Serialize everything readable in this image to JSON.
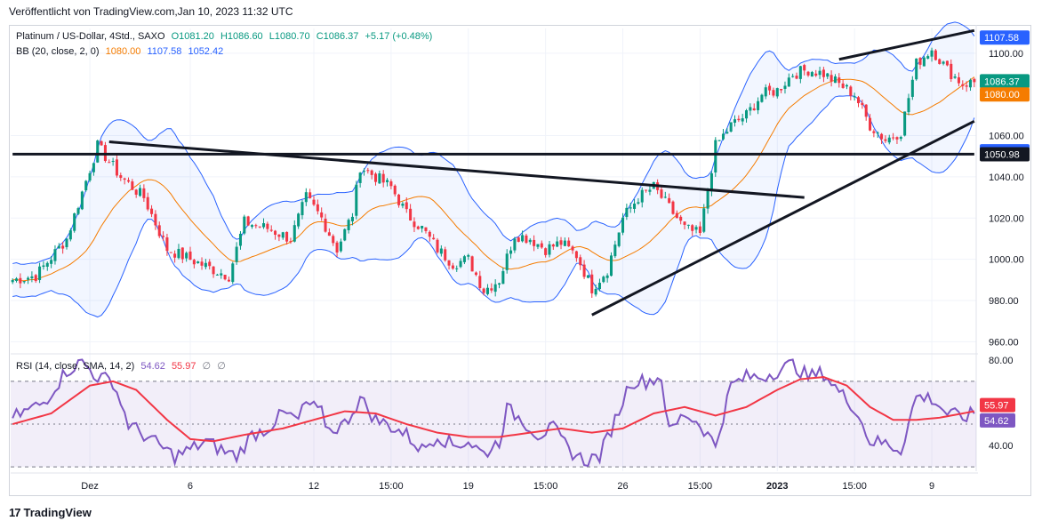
{
  "published": "Veröffentlicht von TradingView.com,Jan 10, 2023 11:32 UTC",
  "brand": "TradingView",
  "brand_icon": "tradingview-logo-icon",
  "legend": {
    "symbol": "Platinum / US-Dollar, 4Std., SAXO",
    "open": "O1081.20",
    "high": "H1086.60",
    "low": "L1080.70",
    "close": "C1086.37",
    "change": "+5.17 (+0.48%)",
    "bb_label": "BB (20, close, 2, 0)",
    "bb_basis": "1080.00",
    "bb_upper": "1107.58",
    "bb_lower": "1052.42",
    "rsi_label": "RSI (14, close, SMA, 14, 2)",
    "rsi_value": "54.62",
    "rsi_ma": "55.97",
    "rsi_extra1": "∅",
    "rsi_extra2": "∅"
  },
  "colors": {
    "up": "#089981",
    "down": "#f23645",
    "bb_band": "#2962ff",
    "bb_basis": "#f57c00",
    "rsi": "#7e57c2",
    "rsi_ma": "#f23645",
    "trendline": "#131722"
  },
  "chart_data": [
    {
      "type": "candlestick",
      "title": "Platinum / US-Dollar, 4Std., SAXO",
      "currency": "USD",
      "ylim": [
        955,
        1112
      ],
      "y_ticks": [
        960,
        980,
        1000,
        1020,
        1040,
        1060,
        1100
      ],
      "y_tick_labels": [
        "960.00",
        "980.00",
        "1000.00",
        "1020.00",
        "1040.00",
        "1060.00",
        "1100.00"
      ],
      "x_tick_labels": [
        "Dez",
        "6",
        "12",
        "15:00",
        "19",
        "15:00",
        "26",
        "15:00",
        "2023",
        "15:00",
        "9"
      ],
      "x_tick_index": [
        20,
        46,
        78,
        98,
        118,
        138,
        158,
        178,
        198,
        218,
        238
      ],
      "n_bars": 250,
      "price_labels": [
        {
          "value": 1107.58,
          "text": "1107.58",
          "color": "#2962ff"
        },
        {
          "value": 1086.37,
          "text": "1086.37",
          "color": "#089981"
        },
        {
          "value": 1080.0,
          "text": "1080.00",
          "color": "#f57c00"
        },
        {
          "value": 1052.42,
          "text": "1052.42",
          "color": "#2962ff"
        },
        {
          "value": 1050.98,
          "text": "1050.98",
          "color": "#131722"
        }
      ],
      "price_path_keypoints": [
        [
          0,
          990
        ],
        [
          6,
          992
        ],
        [
          14,
          1010
        ],
        [
          22,
          1055
        ],
        [
          28,
          1040
        ],
        [
          34,
          1030
        ],
        [
          40,
          1005
        ],
        [
          46,
          1000
        ],
        [
          52,
          995
        ],
        [
          56,
          992
        ],
        [
          60,
          1018
        ],
        [
          66,
          1015
        ],
        [
          72,
          1010
        ],
        [
          76,
          1030
        ],
        [
          80,
          1020
        ],
        [
          84,
          1005
        ],
        [
          88,
          1022
        ],
        [
          90,
          1045
        ],
        [
          94,
          1040
        ],
        [
          98,
          1035
        ],
        [
          102,
          1022
        ],
        [
          106,
          1015
        ],
        [
          110,
          1005
        ],
        [
          114,
          998
        ],
        [
          118,
          1000
        ],
        [
          122,
          985
        ],
        [
          126,
          990
        ],
        [
          130,
          1012
        ],
        [
          134,
          1010
        ],
        [
          138,
          1005
        ],
        [
          142,
          1008
        ],
        [
          146,
          1002
        ],
        [
          150,
          986
        ],
        [
          154,
          995
        ],
        [
          158,
          1020
        ],
        [
          162,
          1030
        ],
        [
          166,
          1035
        ],
        [
          170,
          1025
        ],
        [
          174,
          1015
        ],
        [
          178,
          1012
        ],
        [
          182,
          1055
        ],
        [
          186,
          1065
        ],
        [
          190,
          1070
        ],
        [
          194,
          1080
        ],
        [
          198,
          1082
        ],
        [
          202,
          1090
        ],
        [
          206,
          1092
        ],
        [
          210,
          1090
        ],
        [
          214,
          1085
        ],
        [
          218,
          1080
        ],
        [
          222,
          1065
        ],
        [
          226,
          1058
        ],
        [
          230,
          1062
        ],
        [
          234,
          1095
        ],
        [
          238,
          1102
        ],
        [
          242,
          1092
        ],
        [
          246,
          1085
        ],
        [
          249,
          1086
        ]
      ],
      "trendlines": [
        {
          "from": [
            25,
            1057
          ],
          "to": [
            205,
            1030
          ]
        },
        {
          "from": [
            150,
            973
          ],
          "to": [
            249,
            1067
          ]
        },
        {
          "from": [
            214,
            1097
          ],
          "to": [
            249,
            1111
          ]
        },
        {
          "from": [
            0,
            1051
          ],
          "to": [
            249,
            1051
          ]
        }
      ]
    },
    {
      "type": "line",
      "title": "RSI (14, close, SMA, 14, 2)",
      "ylim": [
        28,
        82
      ],
      "y_ticks": [
        40,
        80
      ],
      "y_tick_labels": [
        "40.00",
        "80.00"
      ],
      "band": [
        30,
        70
      ],
      "series": [
        {
          "name": "RSI",
          "color": "#7e57c2",
          "last": 54.62
        },
        {
          "name": "RSI-based MA",
          "color": "#f23645",
          "last": 55.97
        }
      ],
      "rsi_path_keypoints": [
        [
          0,
          53
        ],
        [
          8,
          60
        ],
        [
          14,
          75
        ],
        [
          18,
          79
        ],
        [
          22,
          72
        ],
        [
          26,
          70
        ],
        [
          30,
          50
        ],
        [
          34,
          45
        ],
        [
          38,
          40
        ],
        [
          42,
          35
        ],
        [
          46,
          38
        ],
        [
          50,
          42
        ],
        [
          54,
          38
        ],
        [
          58,
          35
        ],
        [
          62,
          45
        ],
        [
          66,
          48
        ],
        [
          70,
          55
        ],
        [
          74,
          52
        ],
        [
          76,
          60
        ],
        [
          80,
          55
        ],
        [
          82,
          47
        ],
        [
          86,
          50
        ],
        [
          90,
          62
        ],
        [
          94,
          52
        ],
        [
          98,
          49
        ],
        [
          102,
          45
        ],
        [
          106,
          38
        ],
        [
          110,
          45
        ],
        [
          114,
          40
        ],
        [
          118,
          42
        ],
        [
          122,
          36
        ],
        [
          126,
          42
        ],
        [
          128,
          57
        ],
        [
          132,
          52
        ],
        [
          136,
          45
        ],
        [
          140,
          48
        ],
        [
          144,
          38
        ],
        [
          148,
          33
        ],
        [
          152,
          35
        ],
        [
          156,
          52
        ],
        [
          160,
          70
        ],
        [
          164,
          70
        ],
        [
          168,
          72
        ],
        [
          170,
          46
        ],
        [
          174,
          55
        ],
        [
          178,
          50
        ],
        [
          182,
          40
        ],
        [
          186,
          68
        ],
        [
          190,
          72
        ],
        [
          194,
          72
        ],
        [
          198,
          75
        ],
        [
          202,
          78
        ],
        [
          206,
          72
        ],
        [
          210,
          74
        ],
        [
          214,
          65
        ],
        [
          218,
          58
        ],
        [
          222,
          42
        ],
        [
          226,
          41
        ],
        [
          230,
          38
        ],
        [
          234,
          63
        ],
        [
          238,
          62
        ],
        [
          242,
          55
        ],
        [
          246,
          53
        ],
        [
          249,
          55
        ]
      ],
      "ma_path_keypoints": [
        [
          0,
          50
        ],
        [
          10,
          55
        ],
        [
          20,
          68
        ],
        [
          26,
          70
        ],
        [
          32,
          66
        ],
        [
          40,
          52
        ],
        [
          46,
          43
        ],
        [
          52,
          42
        ],
        [
          60,
          45
        ],
        [
          70,
          48
        ],
        [
          78,
          52
        ],
        [
          86,
          56
        ],
        [
          94,
          55
        ],
        [
          102,
          50
        ],
        [
          110,
          46
        ],
        [
          118,
          44
        ],
        [
          126,
          44
        ],
        [
          134,
          46
        ],
        [
          142,
          48
        ],
        [
          150,
          46
        ],
        [
          158,
          48
        ],
        [
          166,
          55
        ],
        [
          174,
          58
        ],
        [
          182,
          54
        ],
        [
          190,
          58
        ],
        [
          198,
          66
        ],
        [
          204,
          71
        ],
        [
          210,
          72
        ],
        [
          216,
          68
        ],
        [
          222,
          58
        ],
        [
          228,
          52
        ],
        [
          234,
          52
        ],
        [
          240,
          53
        ],
        [
          249,
          56
        ]
      ]
    }
  ]
}
